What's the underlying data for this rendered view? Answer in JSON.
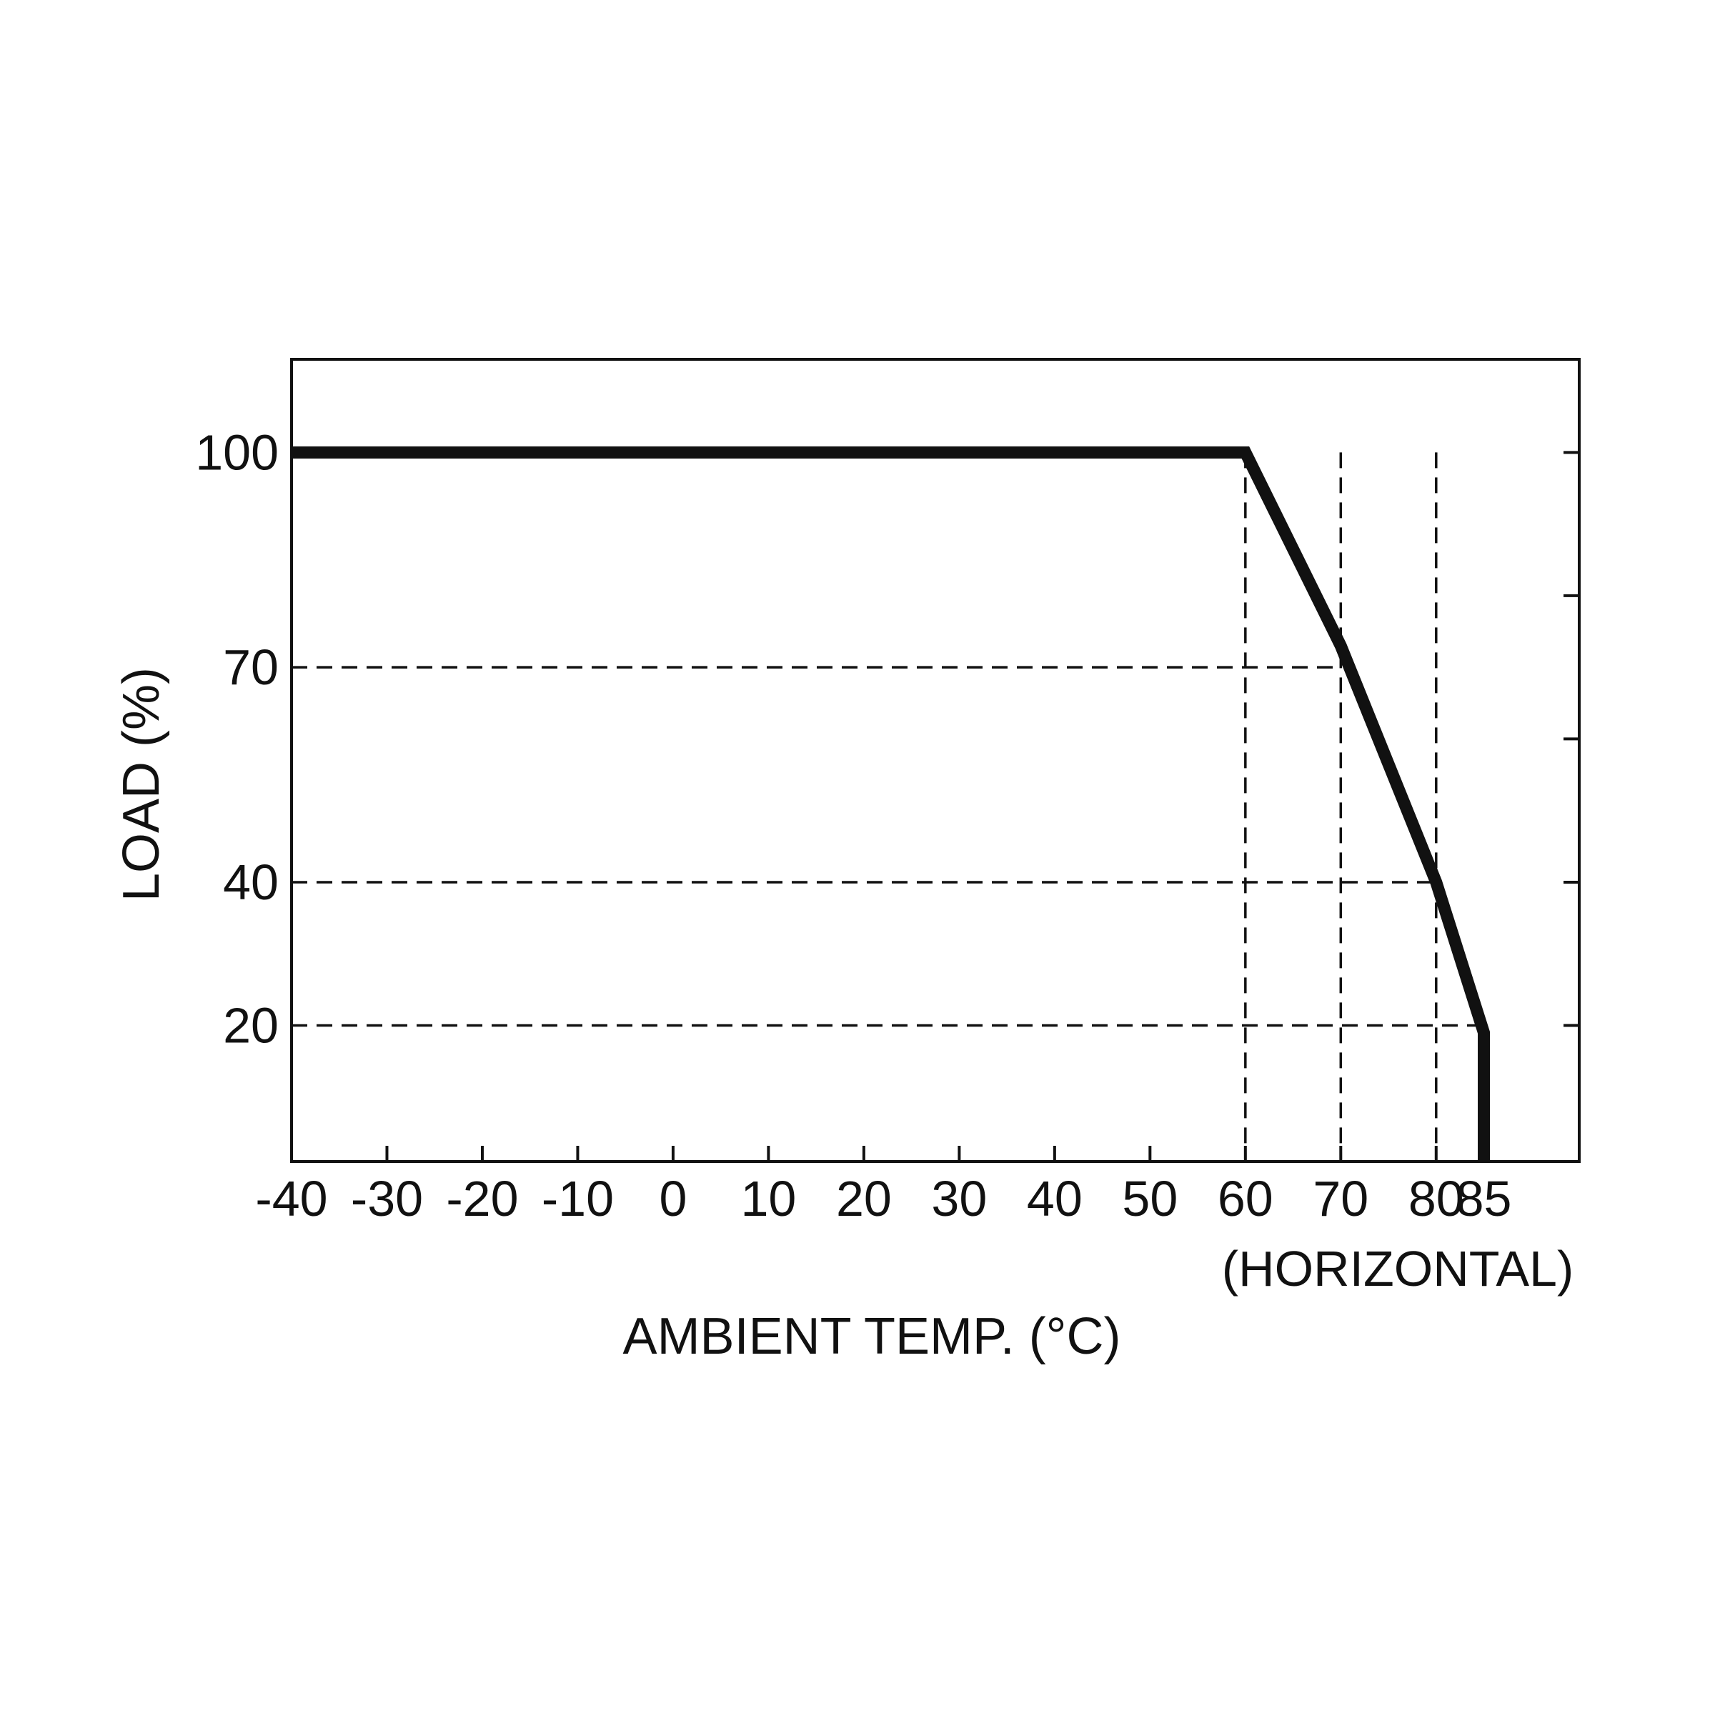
{
  "chart_data": {
    "type": "line",
    "title": "",
    "xlabel": "AMBIENT TEMP. (°C)",
    "xlabel_sub": "(HORIZONTAL)",
    "ylabel": "LOAD (%)",
    "x_ticks": [
      {
        "value": -40,
        "label": "-40"
      },
      {
        "value": -30,
        "label": "-30"
      },
      {
        "value": -20,
        "label": "-20"
      },
      {
        "value": -10,
        "label": "-10"
      },
      {
        "value": 0,
        "label": "0"
      },
      {
        "value": 10,
        "label": "10"
      },
      {
        "value": 20,
        "label": "20"
      },
      {
        "value": 30,
        "label": "30"
      },
      {
        "value": 40,
        "label": "40"
      },
      {
        "value": 50,
        "label": "50"
      },
      {
        "value": 60,
        "label": "60"
      },
      {
        "value": 70,
        "label": "70"
      },
      {
        "value": 80,
        "label": "80"
      },
      {
        "value": 85,
        "label": "85"
      }
    ],
    "y_ticks": [
      {
        "value": 100,
        "label": "100"
      },
      {
        "value": 70,
        "label": "70"
      },
      {
        "value": 40,
        "label": "40"
      },
      {
        "value": 20,
        "label": "20"
      }
    ],
    "right_ticks": [
      100,
      80,
      60,
      40,
      20
    ],
    "xlim": [
      -40,
      95
    ],
    "ylim": [
      1,
      113
    ],
    "grid": false,
    "reference_lines": {
      "horizontal": [
        70,
        40,
        20
      ],
      "vertical": [
        60,
        70,
        80
      ]
    },
    "series": [
      {
        "x": [
          -40,
          60,
          70,
          80,
          85,
          85
        ],
        "y": [
          100,
          100,
          73,
          40,
          19,
          1
        ]
      }
    ],
    "colors": {
      "line": "#111111",
      "axis": "#111111",
      "background": "#ffffff"
    }
  }
}
